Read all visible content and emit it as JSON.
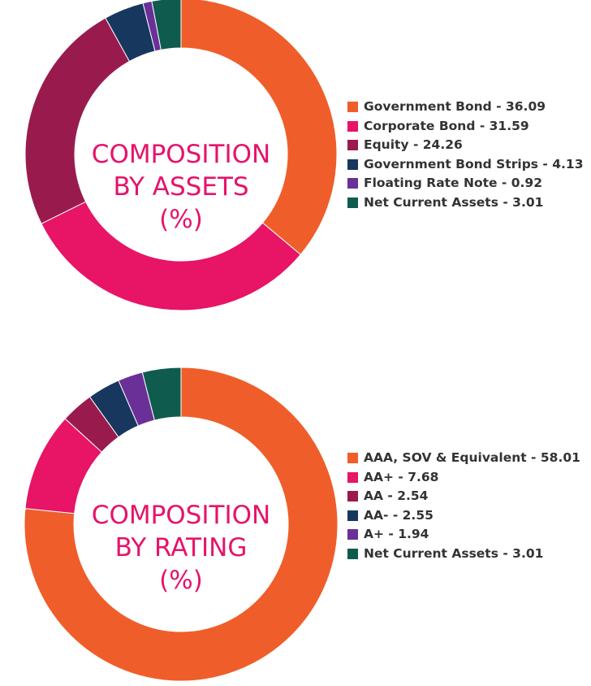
{
  "chart_data": [
    {
      "type": "pie",
      "center_title": [
        "COMPOSITION",
        "BY ASSETS",
        "(%)"
      ],
      "legend_position": "right",
      "series": [
        {
          "label": "Government Bond - 36.09",
          "value": 36.09,
          "color": "#ef5e2a"
        },
        {
          "label": "Corporate Bond - 31.59",
          "value": 31.59,
          "color": "#e81466"
        },
        {
          "label": "Equity - 24.26",
          "value": 24.26,
          "color": "#991b4e"
        },
        {
          "label": "Government Bond Strips - 4.13",
          "value": 4.13,
          "color": "#17375e"
        },
        {
          "label": "Floating Rate Note - 0.92",
          "value": 0.92,
          "color": "#6b2f98"
        },
        {
          "label": "Net Current Assets - 3.01",
          "value": 3.01,
          "color": "#0f5c4f"
        }
      ]
    },
    {
      "type": "pie",
      "center_title": [
        "COMPOSITION",
        "BY RATING",
        "(%)"
      ],
      "legend_position": "right",
      "series": [
        {
          "label": "AAA, SOV & Equivalent - 58.01",
          "value": 58.01,
          "color": "#ef5e2a"
        },
        {
          "label": "AA+ - 7.68",
          "value": 7.68,
          "color": "#e81466"
        },
        {
          "label": "AA - 2.54",
          "value": 2.54,
          "color": "#991b4e"
        },
        {
          "label": "AA- - 2.55",
          "value": 2.55,
          "color": "#17375e"
        },
        {
          "label": "A+ - 1.94",
          "value": 1.94,
          "color": "#6b2f98"
        },
        {
          "label": "Net Current Assets - 3.01",
          "value": 3.01,
          "color": "#0f5c4f"
        }
      ]
    }
  ]
}
